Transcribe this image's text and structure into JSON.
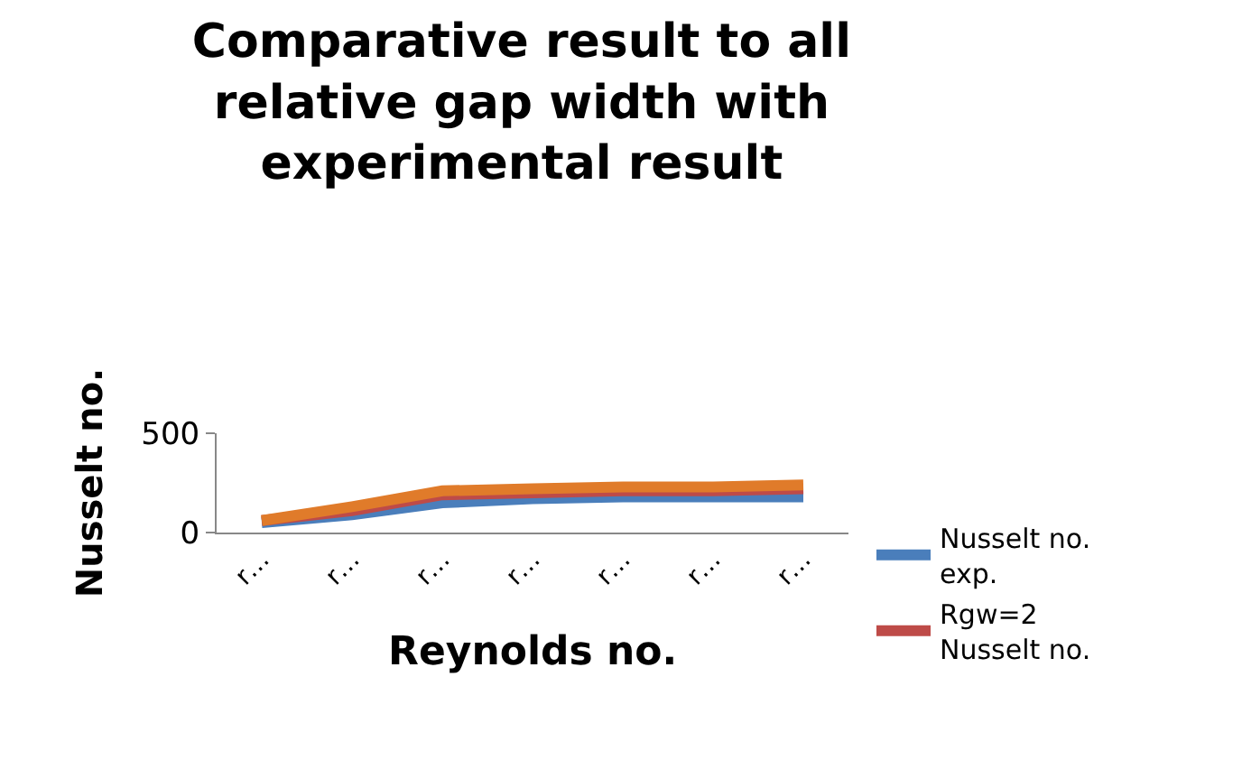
{
  "chart_data": {
    "type": "line",
    "title": "Comparative result to all relative gap width with experimental result",
    "xlabel": "Reynolds no.",
    "ylabel": "Nusselt no.",
    "categories": [
      "r…",
      "r…",
      "r…",
      "r…",
      "r…",
      "r…",
      "r…"
    ],
    "series": [
      {
        "name": "Nusselt no. exp.",
        "color": "#4a7ebb",
        "values": [
          50,
          90,
          150,
          170,
          180,
          180,
          180
        ]
      },
      {
        "name": "Rgw=2 Nusselt no.",
        "color": "#be4b48",
        "values": [
          60,
          110,
          190,
          200,
          210,
          210,
          220
        ]
      },
      {
        "color": "#e07b2a",
        "values": [
          60,
          130,
          210,
          220,
          230,
          230,
          240
        ]
      }
    ],
    "ylim": [
      0,
      500
    ],
    "yticks": [
      0,
      500
    ],
    "legend": "right",
    "marker": "none",
    "line_style": "solid"
  }
}
